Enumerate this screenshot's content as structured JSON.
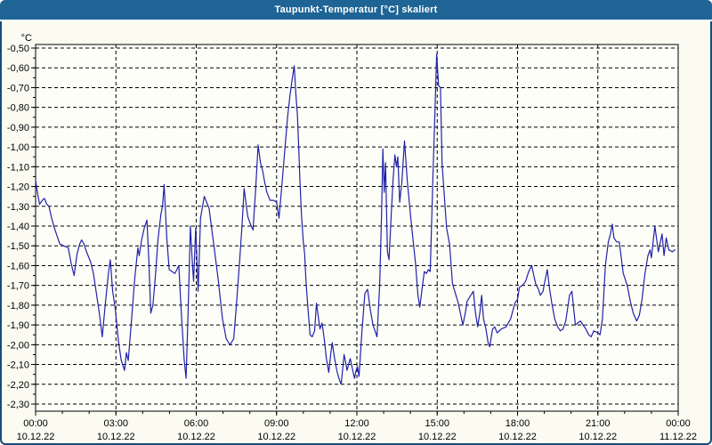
{
  "window": {
    "title": "Taupunkt-Temperatur [°C] skaliert"
  },
  "colors": {
    "titlebar_bg": "#1e6495",
    "titlebar_text": "#ffffff",
    "window_bg": "#fbfbf2",
    "window_border": "#1a4a7a",
    "plot_bg": "#fefef8",
    "plot_border": "#000000",
    "grid": "#000000",
    "line": "#2121aa",
    "label": "#000000"
  },
  "chart_data": {
    "type": "line",
    "title": "Taupunkt-Temperatur [°C] skaliert",
    "ylabel": "°C",
    "xlabel": "",
    "ylim": [
      -2.3,
      -0.5
    ],
    "xlim_hours": [
      0,
      24
    ],
    "grid": "dashed",
    "legend": "none",
    "y_tick_step": 0.1,
    "y_minor_tick_step": 0.05,
    "x_tick_step_hours": 3,
    "x_minor_tick_step_hours": 1,
    "y_tick_labels": [
      "-0,50",
      "-0,60",
      "-0,70",
      "-0,80",
      "-0,90",
      "-1,00",
      "-1,10",
      "-1,20",
      "-1,30",
      "-1,40",
      "-1,50",
      "-1,60",
      "-1,70",
      "-1,80",
      "-1,90",
      "-2,00",
      "-2,10",
      "-2,20",
      "-2,30"
    ],
    "y_tick_values": [
      -0.5,
      -0.6,
      -0.7,
      -0.8,
      -0.9,
      -1.0,
      -1.1,
      -1.2,
      -1.3,
      -1.4,
      -1.5,
      -1.6,
      -1.7,
      -1.8,
      -1.9,
      -2.0,
      -2.1,
      -2.2,
      -2.3
    ],
    "x_ticks": [
      {
        "hour": 0,
        "time": "00:00",
        "date": "10.12.22"
      },
      {
        "hour": 3,
        "time": "03:00",
        "date": "10.12.22"
      },
      {
        "hour": 6,
        "time": "06:00",
        "date": "10.12.22"
      },
      {
        "hour": 9,
        "time": "09:00",
        "date": "10.12.22"
      },
      {
        "hour": 12,
        "time": "12:00",
        "date": "10.12.22"
      },
      {
        "hour": 15,
        "time": "15:00",
        "date": "10.12.22"
      },
      {
        "hour": 18,
        "time": "18:00",
        "date": "10.12.22"
      },
      {
        "hour": 21,
        "time": "21:00",
        "date": "10.12.22"
      },
      {
        "hour": 24,
        "time": "00:00",
        "date": "11.12.22"
      }
    ],
    "series": [
      {
        "name": "Taupunkt-Temperatur",
        "color": "#2121aa",
        "points": [
          [
            0.0,
            -1.17
          ],
          [
            0.08,
            -1.24
          ],
          [
            0.15,
            -1.29
          ],
          [
            0.25,
            -1.27
          ],
          [
            0.33,
            -1.26
          ],
          [
            0.42,
            -1.29
          ],
          [
            0.5,
            -1.3
          ],
          [
            0.6,
            -1.36
          ],
          [
            0.7,
            -1.41
          ],
          [
            0.8,
            -1.45
          ],
          [
            0.9,
            -1.49
          ],
          [
            1.05,
            -1.5
          ],
          [
            1.22,
            -1.51
          ],
          [
            1.33,
            -1.59
          ],
          [
            1.44,
            -1.65
          ],
          [
            1.55,
            -1.54
          ],
          [
            1.65,
            -1.49
          ],
          [
            1.72,
            -1.47
          ],
          [
            1.8,
            -1.49
          ],
          [
            1.9,
            -1.53
          ],
          [
            2.05,
            -1.58
          ],
          [
            2.16,
            -1.64
          ],
          [
            2.27,
            -1.74
          ],
          [
            2.38,
            -1.84
          ],
          [
            2.49,
            -1.96
          ],
          [
            2.6,
            -1.8
          ],
          [
            2.72,
            -1.64
          ],
          [
            2.79,
            -1.57
          ],
          [
            2.88,
            -1.73
          ],
          [
            2.97,
            -1.81
          ],
          [
            3.1,
            -1.99
          ],
          [
            3.2,
            -2.08
          ],
          [
            3.32,
            -2.13
          ],
          [
            3.39,
            -2.04
          ],
          [
            3.46,
            -2.08
          ],
          [
            3.58,
            -1.88
          ],
          [
            3.7,
            -1.67
          ],
          [
            3.82,
            -1.51
          ],
          [
            3.87,
            -1.55
          ],
          [
            3.96,
            -1.47
          ],
          [
            4.06,
            -1.41
          ],
          [
            4.16,
            -1.37
          ],
          [
            4.23,
            -1.58
          ],
          [
            4.3,
            -1.84
          ],
          [
            4.38,
            -1.8
          ],
          [
            4.47,
            -1.66
          ],
          [
            4.57,
            -1.47
          ],
          [
            4.68,
            -1.34
          ],
          [
            4.74,
            -1.3
          ],
          [
            4.8,
            -1.19
          ],
          [
            4.9,
            -1.46
          ],
          [
            4.99,
            -1.62
          ],
          [
            5.1,
            -1.63
          ],
          [
            5.2,
            -1.64
          ],
          [
            5.28,
            -1.62
          ],
          [
            5.35,
            -1.6
          ],
          [
            5.45,
            -1.86
          ],
          [
            5.55,
            -2.08
          ],
          [
            5.62,
            -2.17
          ],
          [
            5.7,
            -1.81
          ],
          [
            5.78,
            -1.4
          ],
          [
            5.86,
            -1.6
          ],
          [
            5.9,
            -1.68
          ],
          [
            5.98,
            -1.41
          ],
          [
            6.07,
            -1.73
          ],
          [
            6.16,
            -1.36
          ],
          [
            6.3,
            -1.25
          ],
          [
            6.48,
            -1.31
          ],
          [
            6.65,
            -1.49
          ],
          [
            6.81,
            -1.66
          ],
          [
            6.98,
            -1.87
          ],
          [
            7.12,
            -1.97
          ],
          [
            7.26,
            -2.0
          ],
          [
            7.4,
            -1.97
          ],
          [
            7.5,
            -1.8
          ],
          [
            7.62,
            -1.58
          ],
          [
            7.71,
            -1.4
          ],
          [
            7.79,
            -1.21
          ],
          [
            7.92,
            -1.35
          ],
          [
            8.02,
            -1.39
          ],
          [
            8.12,
            -1.42
          ],
          [
            8.22,
            -1.21
          ],
          [
            8.31,
            -0.99
          ],
          [
            8.4,
            -1.08
          ],
          [
            8.48,
            -1.12
          ],
          [
            8.56,
            -1.18
          ],
          [
            8.64,
            -1.23
          ],
          [
            8.76,
            -1.27
          ],
          [
            8.9,
            -1.27
          ],
          [
            9.0,
            -1.28
          ],
          [
            9.09,
            -1.36
          ],
          [
            9.2,
            -1.19
          ],
          [
            9.31,
            -1.01
          ],
          [
            9.41,
            -0.85
          ],
          [
            9.5,
            -0.74
          ],
          [
            9.58,
            -0.66
          ],
          [
            9.66,
            -0.59
          ],
          [
            9.72,
            -0.73
          ],
          [
            9.78,
            -0.84
          ],
          [
            9.83,
            -1.01
          ],
          [
            9.87,
            -1.16
          ],
          [
            9.93,
            -1.34
          ],
          [
            10.0,
            -1.48
          ],
          [
            10.05,
            -1.54
          ],
          [
            10.1,
            -1.68
          ],
          [
            10.17,
            -1.81
          ],
          [
            10.25,
            -1.95
          ],
          [
            10.33,
            -1.96
          ],
          [
            10.42,
            -1.93
          ],
          [
            10.49,
            -1.79
          ],
          [
            10.56,
            -1.86
          ],
          [
            10.62,
            -1.92
          ],
          [
            10.7,
            -1.89
          ],
          [
            10.78,
            -1.97
          ],
          [
            10.86,
            -2.07
          ],
          [
            10.95,
            -2.14
          ],
          [
            11.02,
            -2.05
          ],
          [
            11.08,
            -1.99
          ],
          [
            11.17,
            -2.07
          ],
          [
            11.25,
            -2.13
          ],
          [
            11.33,
            -2.17
          ],
          [
            11.41,
            -2.2
          ],
          [
            11.47,
            -2.12
          ],
          [
            11.52,
            -2.05
          ],
          [
            11.58,
            -2.09
          ],
          [
            11.63,
            -2.13
          ],
          [
            11.69,
            -2.1
          ],
          [
            11.75,
            -2.07
          ],
          [
            11.83,
            -2.12
          ],
          [
            11.91,
            -2.17
          ],
          [
            11.97,
            -2.13
          ],
          [
            12.02,
            -2.11
          ],
          [
            12.08,
            -2.16
          ],
          [
            12.19,
            -1.93
          ],
          [
            12.3,
            -1.74
          ],
          [
            12.4,
            -1.72
          ],
          [
            12.5,
            -1.82
          ],
          [
            12.6,
            -1.9
          ],
          [
            12.75,
            -1.96
          ],
          [
            12.85,
            -1.7
          ],
          [
            12.92,
            -1.34
          ],
          [
            12.97,
            -1.01
          ],
          [
            13.02,
            -1.23
          ],
          [
            13.07,
            -1.08
          ],
          [
            13.14,
            -1.53
          ],
          [
            13.2,
            -1.57
          ],
          [
            13.28,
            -1.35
          ],
          [
            13.35,
            -1.17
          ],
          [
            13.42,
            -1.04
          ],
          [
            13.48,
            -1.1
          ],
          [
            13.53,
            -1.05
          ],
          [
            13.6,
            -1.28
          ],
          [
            13.68,
            -1.18
          ],
          [
            13.78,
            -0.97
          ],
          [
            13.88,
            -1.17
          ],
          [
            14.02,
            -1.37
          ],
          [
            14.19,
            -1.59
          ],
          [
            14.28,
            -1.75
          ],
          [
            14.35,
            -1.81
          ],
          [
            14.45,
            -1.7
          ],
          [
            14.52,
            -1.63
          ],
          [
            14.6,
            -1.64
          ],
          [
            14.67,
            -1.62
          ],
          [
            14.74,
            -1.63
          ],
          [
            14.85,
            -1.11
          ],
          [
            14.92,
            -0.81
          ],
          [
            14.98,
            -0.53
          ],
          [
            15.05,
            -0.69
          ],
          [
            15.12,
            -0.7
          ],
          [
            15.18,
            -1.08
          ],
          [
            15.25,
            -1.22
          ],
          [
            15.35,
            -1.41
          ],
          [
            15.46,
            -1.49
          ],
          [
            15.57,
            -1.69
          ],
          [
            15.7,
            -1.75
          ],
          [
            15.79,
            -1.79
          ],
          [
            15.88,
            -1.85
          ],
          [
            15.96,
            -1.9
          ],
          [
            16.05,
            -1.84
          ],
          [
            16.12,
            -1.78
          ],
          [
            16.25,
            -1.75
          ],
          [
            16.35,
            -1.73
          ],
          [
            16.42,
            -1.83
          ],
          [
            16.51,
            -1.91
          ],
          [
            16.6,
            -1.83
          ],
          [
            16.66,
            -1.75
          ],
          [
            16.73,
            -1.87
          ],
          [
            16.82,
            -1.92
          ],
          [
            16.9,
            -1.99
          ],
          [
            16.96,
            -2.01
          ],
          [
            17.07,
            -1.92
          ],
          [
            17.15,
            -1.91
          ],
          [
            17.24,
            -1.94
          ],
          [
            17.4,
            -1.92
          ],
          [
            17.57,
            -1.91
          ],
          [
            17.74,
            -1.87
          ],
          [
            17.9,
            -1.79
          ],
          [
            18.0,
            -1.77
          ],
          [
            18.07,
            -1.71
          ],
          [
            18.18,
            -1.7
          ],
          [
            18.3,
            -1.68
          ],
          [
            18.42,
            -1.63
          ],
          [
            18.53,
            -1.6
          ],
          [
            18.67,
            -1.69
          ],
          [
            18.78,
            -1.72
          ],
          [
            18.85,
            -1.75
          ],
          [
            18.95,
            -1.73
          ],
          [
            19.02,
            -1.68
          ],
          [
            19.11,
            -1.62
          ],
          [
            19.2,
            -1.72
          ],
          [
            19.28,
            -1.79
          ],
          [
            19.39,
            -1.87
          ],
          [
            19.5,
            -1.91
          ],
          [
            19.6,
            -1.93
          ],
          [
            19.7,
            -1.92
          ],
          [
            19.8,
            -1.88
          ],
          [
            19.94,
            -1.75
          ],
          [
            20.03,
            -1.73
          ],
          [
            20.16,
            -1.9
          ],
          [
            20.25,
            -1.89
          ],
          [
            20.35,
            -1.88
          ],
          [
            20.45,
            -1.9
          ],
          [
            20.55,
            -1.92
          ],
          [
            20.66,
            -1.95
          ],
          [
            20.75,
            -1.96
          ],
          [
            20.85,
            -1.93
          ],
          [
            21.0,
            -1.94
          ],
          [
            21.08,
            -1.95
          ],
          [
            21.17,
            -1.87
          ],
          [
            21.28,
            -1.6
          ],
          [
            21.39,
            -1.48
          ],
          [
            21.47,
            -1.44
          ],
          [
            21.54,
            -1.39
          ],
          [
            21.6,
            -1.46
          ],
          [
            21.7,
            -1.48
          ],
          [
            21.8,
            -1.48
          ],
          [
            21.95,
            -1.64
          ],
          [
            22.1,
            -1.7
          ],
          [
            22.21,
            -1.78
          ],
          [
            22.32,
            -1.84
          ],
          [
            22.45,
            -1.88
          ],
          [
            22.55,
            -1.85
          ],
          [
            22.65,
            -1.77
          ],
          [
            22.76,
            -1.64
          ],
          [
            22.87,
            -1.55
          ],
          [
            22.95,
            -1.52
          ],
          [
            23.0,
            -1.56
          ],
          [
            23.13,
            -1.4
          ],
          [
            23.26,
            -1.53
          ],
          [
            23.4,
            -1.44
          ],
          [
            23.47,
            -1.55
          ],
          [
            23.55,
            -1.46
          ],
          [
            23.65,
            -1.52
          ],
          [
            23.78,
            -1.53
          ],
          [
            23.88,
            -1.52
          ]
        ]
      }
    ]
  }
}
